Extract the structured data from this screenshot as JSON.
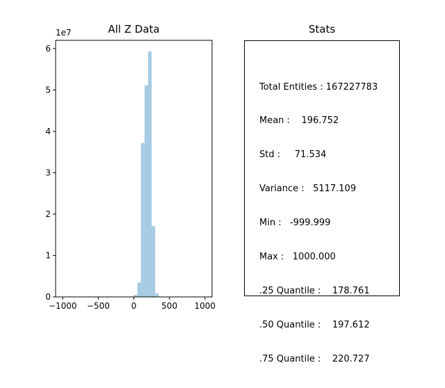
{
  "chart_data": [
    {
      "type": "bar",
      "title": "All Z Data",
      "xlabel": "",
      "ylabel": "",
      "y_offset_label": "1e7",
      "xlim": [
        -1100,
        1100
      ],
      "ylim": [
        0,
        6.2
      ],
      "xticks": [
        -1000,
        -500,
        0,
        500,
        1000
      ],
      "xtick_labels": [
        "−1000",
        "−500",
        "0",
        "500",
        "1000"
      ],
      "yticks": [
        0,
        1,
        2,
        3,
        4,
        5,
        6
      ],
      "ytick_labels": [
        "0",
        "1",
        "2",
        "3",
        "4",
        "5",
        "6"
      ],
      "bar_color": "#a6cbe3",
      "bins": [
        {
          "x0": 0,
          "x1": 50,
          "value": 0.05
        },
        {
          "x0": 50,
          "x1": 100,
          "value": 0.35
        },
        {
          "x0": 100,
          "x1": 150,
          "value": 3.72
        },
        {
          "x0": 150,
          "x1": 200,
          "value": 5.11
        },
        {
          "x0": 200,
          "x1": 250,
          "value": 5.93
        },
        {
          "x0": 250,
          "x1": 300,
          "value": 1.71
        },
        {
          "x0": 300,
          "x1": 350,
          "value": 0.08
        }
      ]
    },
    {
      "type": "table",
      "title": "Stats",
      "lines": [
        "Total Entities : 167227783",
        "Mean :    196.752",
        "Std :     71.534",
        "Variance :   5117.109",
        "Min :   -999.999",
        "Max :   1000.000",
        ".25 Quantile :    178.761",
        ".50 Quantile :    197.612",
        ".75 Quantile :    220.727"
      ]
    }
  ]
}
